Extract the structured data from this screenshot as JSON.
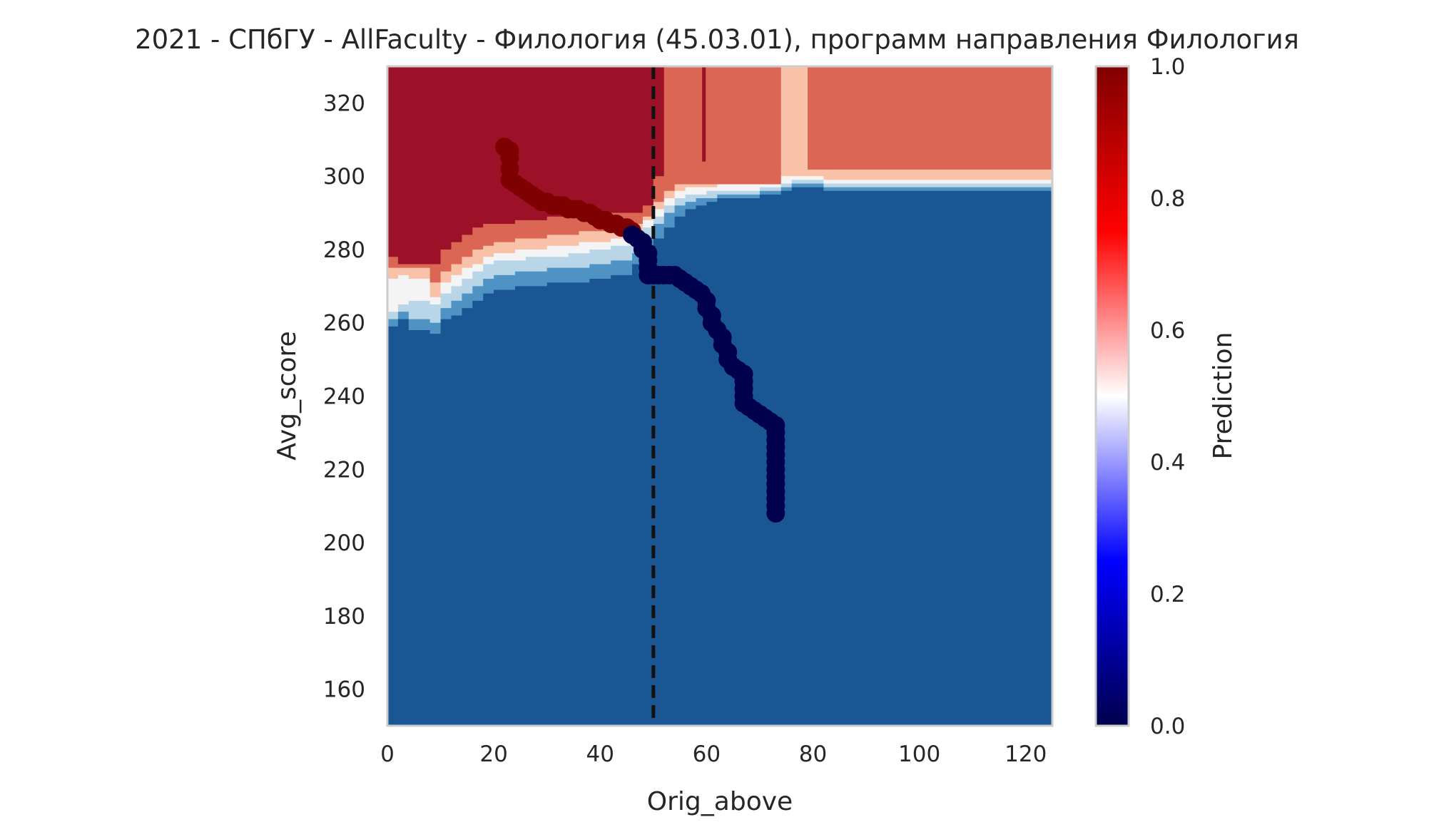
{
  "chart_data": {
    "type": "heatmap",
    "title": "2021 - СПбГУ - AllFaculty - Филология (45.03.01), программ направления Филология",
    "xlabel": "Orig_above",
    "ylabel": "Avg_score",
    "xlim": [
      0,
      125
    ],
    "ylim": [
      150,
      330
    ],
    "x_ticks": [
      0,
      20,
      40,
      60,
      80,
      100,
      120
    ],
    "y_ticks": [
      160,
      180,
      200,
      220,
      240,
      260,
      280,
      300,
      320
    ],
    "x_tick_labels": [
      "0",
      "20",
      "40",
      "60",
      "80",
      "100",
      "120"
    ],
    "y_tick_labels": [
      "160",
      "180",
      "200",
      "220",
      "240",
      "260",
      "280",
      "300",
      "320"
    ],
    "grid": false,
    "colorbar": {
      "label": "Prediction",
      "range": [
        0,
        1
      ],
      "ticks": [
        0.0,
        0.2,
        0.4,
        0.6,
        0.8,
        1.0
      ],
      "tick_labels": [
        "0.0",
        "0.2",
        "0.4",
        "0.6",
        "0.8",
        "1.0"
      ],
      "colormap": "seismic",
      "stops": [
        {
          "value": 0.0,
          "color": "#00004d"
        },
        {
          "value": 0.25,
          "color": "#0000ff"
        },
        {
          "value": 0.5,
          "color": "#ffffff"
        },
        {
          "value": 0.75,
          "color": "#ff0000"
        },
        {
          "value": 1.0,
          "color": "#800000"
        }
      ]
    },
    "region_colors": {
      "very_low": "#1b5694",
      "low_mid": "#4f93c4",
      "low_light": "#b8d6e8",
      "neutral": "#f4f4f4",
      "high_light": "#f9c1a8",
      "high_mid": "#dc6654",
      "very_high": "#9c1127"
    },
    "vertical_line": {
      "x": 50,
      "style": "dashed",
      "color": "#111111"
    },
    "trajectory": {
      "high_color": "#7f0000",
      "low_color": "#00004d",
      "high_points": [
        [
          22,
          308
        ],
        [
          23,
          307
        ],
        [
          23,
          305
        ],
        [
          23,
          302
        ],
        [
          23,
          299
        ],
        [
          24,
          298
        ],
        [
          25,
          297
        ],
        [
          26,
          296
        ],
        [
          27,
          295
        ],
        [
          28,
          294
        ],
        [
          29,
          293
        ],
        [
          30,
          293
        ],
        [
          31,
          292
        ],
        [
          32,
          292
        ],
        [
          33,
          292
        ],
        [
          34,
          291
        ],
        [
          35,
          291
        ],
        [
          36,
          291
        ],
        [
          37,
          290
        ],
        [
          38,
          290
        ],
        [
          39,
          289
        ],
        [
          40,
          288
        ],
        [
          41,
          288
        ],
        [
          42,
          287
        ],
        [
          43,
          287
        ],
        [
          44,
          286
        ],
        [
          45,
          286
        ],
        [
          46,
          285
        ]
      ],
      "low_points": [
        [
          46,
          284
        ],
        [
          47,
          283
        ],
        [
          48,
          282
        ],
        [
          48,
          280
        ],
        [
          49,
          279
        ],
        [
          49,
          277
        ],
        [
          49,
          275
        ],
        [
          49,
          273
        ],
        [
          50,
          273
        ],
        [
          51,
          273
        ],
        [
          52,
          273
        ],
        [
          53,
          273
        ],
        [
          54,
          273
        ],
        [
          55,
          272
        ],
        [
          56,
          271
        ],
        [
          57,
          270
        ],
        [
          58,
          269
        ],
        [
          59,
          268
        ],
        [
          60,
          266
        ],
        [
          60,
          264
        ],
        [
          61,
          262
        ],
        [
          61,
          260
        ],
        [
          62,
          258
        ],
        [
          63,
          256
        ],
        [
          63,
          254
        ],
        [
          64,
          252
        ],
        [
          64,
          250
        ],
        [
          65,
          248
        ],
        [
          66,
          247
        ],
        [
          67,
          246
        ],
        [
          67,
          244
        ],
        [
          67,
          242
        ],
        [
          67,
          240
        ],
        [
          67,
          238
        ],
        [
          68,
          237
        ],
        [
          69,
          236
        ],
        [
          70,
          235
        ],
        [
          71,
          234
        ],
        [
          72,
          233
        ],
        [
          73,
          232
        ],
        [
          73,
          230
        ],
        [
          73,
          228
        ],
        [
          73,
          226
        ],
        [
          73,
          224
        ],
        [
          73,
          222
        ],
        [
          73,
          220
        ],
        [
          73,
          218
        ],
        [
          73,
          216
        ],
        [
          73,
          214
        ],
        [
          73,
          212
        ],
        [
          73,
          210
        ],
        [
          73,
          208
        ]
      ]
    },
    "bands": {
      "x": [
        0,
        2,
        4,
        6,
        8,
        10,
        12,
        14,
        16,
        18,
        20,
        22,
        24,
        26,
        28,
        30,
        32,
        34,
        36,
        38,
        40,
        42,
        44,
        46,
        48,
        50,
        52,
        54,
        56,
        58,
        60,
        62,
        64,
        66,
        68,
        70,
        72,
        74,
        76,
        78,
        80,
        82,
        84,
        86,
        88,
        90,
        92,
        94,
        96,
        98,
        100,
        102,
        104,
        106,
        108,
        110,
        112,
        114,
        116,
        118,
        120,
        122,
        125
      ],
      "b_low_mid": [
        259,
        261,
        258,
        258,
        257,
        261,
        262,
        264,
        266,
        268,
        269,
        269,
        270,
        270,
        270,
        271,
        271,
        271,
        271,
        272,
        272,
        273,
        273,
        276,
        280,
        283,
        286,
        289,
        291,
        292,
        293,
        294,
        294,
        294,
        294,
        295,
        295,
        296,
        297,
        297,
        297,
        296,
        296,
        296,
        296,
        296,
        296,
        296,
        296,
        296,
        296,
        296,
        296,
        296,
        296,
        296,
        296,
        296,
        296,
        296,
        296,
        296,
        296
      ],
      "b_low_light": [
        261,
        263,
        261,
        261,
        260,
        264,
        266,
        268,
        270,
        272,
        273,
        273,
        274,
        274,
        274,
        275,
        275,
        275,
        275,
        276,
        276,
        277,
        277,
        279,
        283,
        287,
        290,
        292,
        293,
        294,
        294,
        295,
        295,
        295,
        295,
        296,
        296,
        297,
        298,
        298,
        298,
        297,
        297,
        297,
        297,
        297,
        297,
        297,
        297,
        297,
        297,
        297,
        297,
        297,
        297,
        297,
        297,
        297,
        297,
        297,
        297,
        297,
        297
      ],
      "b_neutral": [
        263,
        265,
        266,
        266,
        265,
        268,
        270,
        272,
        274,
        276,
        277,
        277,
        277,
        278,
        278,
        278,
        278,
        279,
        279,
        280,
        280,
        281,
        281,
        283,
        286,
        289,
        292,
        294,
        295,
        295,
        296,
        296,
        296,
        296,
        296,
        297,
        297,
        298,
        299,
        299,
        299,
        298,
        298,
        298,
        298,
        298,
        298,
        298,
        298,
        298,
        298,
        298,
        298,
        298,
        298,
        298,
        298,
        298,
        298,
        298,
        298,
        298,
        298
      ],
      "b_high_light": [
        272,
        273,
        272,
        272,
        267,
        271,
        273,
        275,
        276,
        278,
        279,
        279,
        280,
        280,
        280,
        281,
        281,
        281,
        282,
        282,
        282,
        283,
        283,
        285,
        288,
        291,
        294,
        296,
        297,
        297,
        297,
        298,
        298,
        298,
        298,
        299,
        299,
        300,
        300,
        300,
        300,
        299,
        299,
        299,
        299,
        299,
        299,
        299,
        299,
        299,
        299,
        299,
        299,
        299,
        299,
        299,
        299,
        299,
        299,
        299,
        299,
        299,
        299
      ],
      "b_high_mid": [
        275,
        275,
        275,
        275,
        271,
        274,
        276,
        278,
        280,
        281,
        282,
        282,
        283,
        283,
        283,
        284,
        284,
        284,
        285,
        285,
        285,
        286,
        286,
        287,
        289,
        293,
        296,
        298,
        299,
        300,
        300,
        300,
        301,
        301,
        301,
        301,
        302,
        302,
        302,
        302,
        302,
        302,
        302,
        302,
        302,
        302,
        302,
        302,
        302,
        302,
        302,
        302,
        302,
        302,
        302,
        302,
        302,
        302,
        302,
        302,
        302,
        302,
        302
      ],
      "b_very_high": [
        278,
        276,
        276,
        276,
        276,
        280,
        282,
        284,
        286,
        287,
        287,
        287,
        288,
        288,
        288,
        289,
        289,
        289,
        289,
        289,
        289,
        290,
        290,
        290,
        292,
        300,
        330,
        330,
        330,
        330,
        330,
        330,
        330,
        330,
        330,
        330,
        330,
        330,
        330,
        330,
        330,
        330,
        330,
        330,
        330,
        330,
        330,
        330,
        330,
        330,
        330,
        330,
        330,
        330,
        330,
        330,
        330,
        330,
        330,
        330,
        330,
        330,
        330
      ]
    },
    "top_segments": [
      {
        "from": 54,
        "to": 74,
        "color_key": "high_mid"
      },
      {
        "from": 74,
        "to": 79,
        "color_key": "high_light"
      },
      {
        "from": 79,
        "to": 125,
        "color_key": "high_mid"
      }
    ],
    "thin_line_top": {
      "x": 59.5,
      "from": 304,
      "to": 330,
      "color_key": "very_high"
    }
  }
}
